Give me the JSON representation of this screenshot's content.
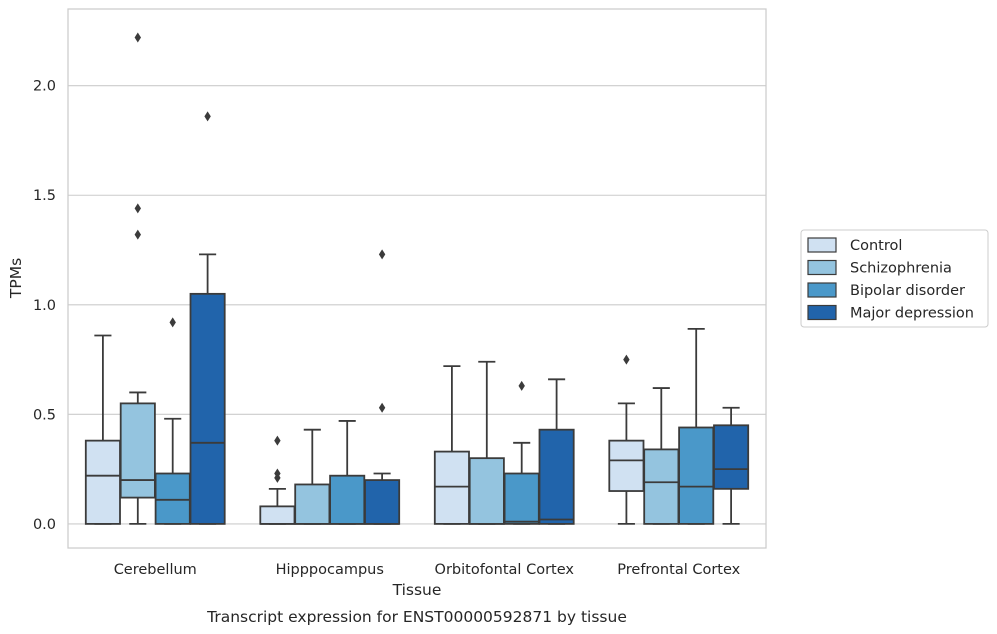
{
  "chart_data": {
    "type": "box",
    "xlabel": "Tissue",
    "ylabel": "TPMs",
    "caption": "Transcript expression for ENST00000592871 by tissue",
    "ylim": [
      -0.11,
      2.35
    ],
    "yticks": [
      0.0,
      0.5,
      1.0,
      1.5,
      2.0
    ],
    "ytick_labels": [
      "0.0",
      "0.5",
      "1.0",
      "1.5",
      "2.0"
    ],
    "grid": "horizontal",
    "legend_position": "right",
    "categories": [
      "Cerebellum",
      "Hipppocampus",
      "Orbitofontal Cortex",
      "Prefrontal Cortex"
    ],
    "series": [
      {
        "name": "Control",
        "color": "#d0e1f2",
        "boxes": [
          {
            "q1": 0.0,
            "median": 0.22,
            "q3": 0.38,
            "whisker_low": 0.0,
            "whisker_high": 0.86,
            "outliers": []
          },
          {
            "q1": 0.0,
            "median": 0.0,
            "q3": 0.08,
            "whisker_low": 0.0,
            "whisker_high": 0.16,
            "outliers": [
              0.21,
              0.23,
              0.38
            ]
          },
          {
            "q1": 0.0,
            "median": 0.17,
            "q3": 0.33,
            "whisker_low": 0.0,
            "whisker_high": 0.72,
            "outliers": []
          },
          {
            "q1": 0.15,
            "median": 0.29,
            "q3": 0.38,
            "whisker_low": 0.0,
            "whisker_high": 0.55,
            "outliers": [
              0.75
            ]
          }
        ]
      },
      {
        "name": "Schizophrenia",
        "color": "#94c4df",
        "boxes": [
          {
            "q1": 0.12,
            "median": 0.2,
            "q3": 0.55,
            "whisker_low": 0.0,
            "whisker_high": 0.6,
            "outliers": [
              1.32,
              1.44,
              2.22
            ]
          },
          {
            "q1": 0.0,
            "median": 0.0,
            "q3": 0.18,
            "whisker_low": 0.0,
            "whisker_high": 0.43,
            "outliers": []
          },
          {
            "q1": 0.0,
            "median": 0.0,
            "q3": 0.3,
            "whisker_low": 0.0,
            "whisker_high": 0.74,
            "outliers": []
          },
          {
            "q1": 0.0,
            "median": 0.19,
            "q3": 0.34,
            "whisker_low": 0.0,
            "whisker_high": 0.62,
            "outliers": []
          }
        ]
      },
      {
        "name": "Bipolar disorder",
        "color": "#4a98c9",
        "boxes": [
          {
            "q1": 0.0,
            "median": 0.11,
            "q3": 0.23,
            "whisker_low": 0.0,
            "whisker_high": 0.48,
            "outliers": [
              0.92
            ]
          },
          {
            "q1": 0.0,
            "median": 0.0,
            "q3": 0.22,
            "whisker_low": 0.0,
            "whisker_high": 0.47,
            "outliers": []
          },
          {
            "q1": 0.0,
            "median": 0.01,
            "q3": 0.23,
            "whisker_low": 0.0,
            "whisker_high": 0.37,
            "outliers": [
              0.63
            ]
          },
          {
            "q1": 0.0,
            "median": 0.17,
            "q3": 0.44,
            "whisker_low": 0.0,
            "whisker_high": 0.89,
            "outliers": []
          }
        ]
      },
      {
        "name": "Major depression",
        "color": "#2164ab",
        "boxes": [
          {
            "q1": 0.0,
            "median": 0.37,
            "q3": 1.05,
            "whisker_low": 0.0,
            "whisker_high": 1.23,
            "outliers": [
              1.86
            ]
          },
          {
            "q1": 0.0,
            "median": 0.0,
            "q3": 0.2,
            "whisker_low": 0.0,
            "whisker_high": 0.23,
            "outliers": [
              0.53,
              1.23
            ]
          },
          {
            "q1": 0.0,
            "median": 0.02,
            "q3": 0.43,
            "whisker_low": 0.0,
            "whisker_high": 0.66,
            "outliers": []
          },
          {
            "q1": 0.16,
            "median": 0.25,
            "q3": 0.45,
            "whisker_low": 0.0,
            "whisker_high": 0.53,
            "outliers": []
          }
        ]
      }
    ]
  }
}
